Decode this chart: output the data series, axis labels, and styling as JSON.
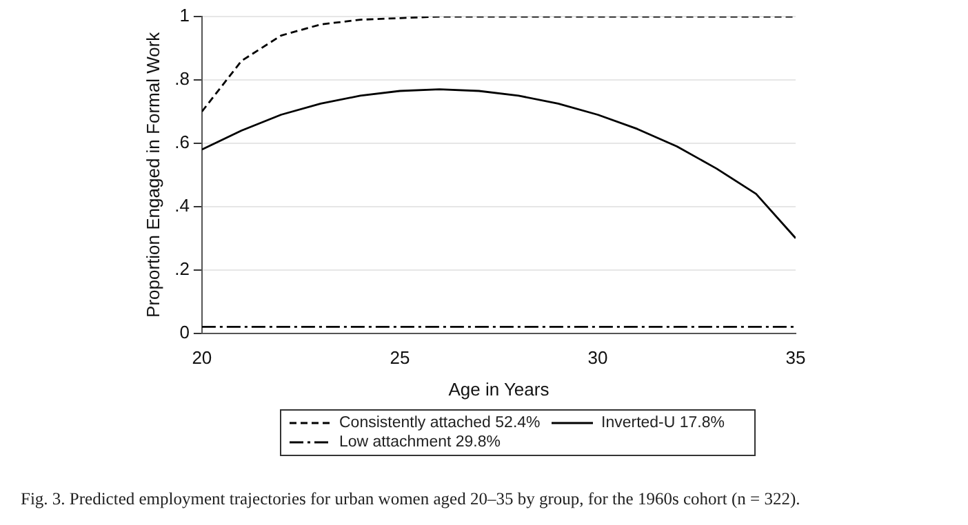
{
  "chart_data": {
    "type": "line",
    "xlabel": "Age in Years",
    "ylabel": "Proportion Engaged in Formal Work",
    "x": [
      20,
      21,
      22,
      23,
      24,
      25,
      26,
      27,
      28,
      29,
      30,
      31,
      32,
      33,
      34,
      35
    ],
    "series": [
      {
        "name": "Consistently attached 52.4%",
        "color": "#000000",
        "line_style": "dashed",
        "values": [
          0.7,
          0.86,
          0.94,
          0.975,
          0.99,
          0.995,
          1.0,
          1.0,
          1.0,
          1.0,
          1.0,
          1.0,
          1.0,
          1.0,
          1.0,
          1.0
        ]
      },
      {
        "name": "Inverted-U 17.8%",
        "color": "#000000",
        "line_style": "solid",
        "values": [
          0.58,
          0.64,
          0.69,
          0.725,
          0.75,
          0.765,
          0.77,
          0.765,
          0.75,
          0.725,
          0.69,
          0.645,
          0.59,
          0.52,
          0.44,
          0.3
        ]
      },
      {
        "name": "Low attachment 29.8%",
        "color": "#000000",
        "line_style": "dashdot",
        "values": [
          0.02,
          0.02,
          0.02,
          0.02,
          0.02,
          0.02,
          0.02,
          0.02,
          0.02,
          0.02,
          0.02,
          0.02,
          0.02,
          0.02,
          0.02,
          0.02
        ]
      }
    ],
    "xlim": [
      20,
      35
    ],
    "xticks": [
      20,
      25,
      30,
      35
    ],
    "ylim": [
      0,
      1
    ],
    "yticks": [
      {
        "value": 0,
        "label": "0"
      },
      {
        "value": 0.2,
        "label": ".2"
      },
      {
        "value": 0.4,
        "label": ".4"
      },
      {
        "value": 0.6,
        "label": ".6"
      },
      {
        "value": 0.8,
        "label": ".8"
      },
      {
        "value": 1,
        "label": "1"
      }
    ],
    "grid": "y",
    "legend": "bottom",
    "marker": "none",
    "annotations": [
      "Fig. 3. Predicted employment trajectories for urban women aged 20–35 by group, for the 1960s cohort (n = 322)."
    ]
  }
}
